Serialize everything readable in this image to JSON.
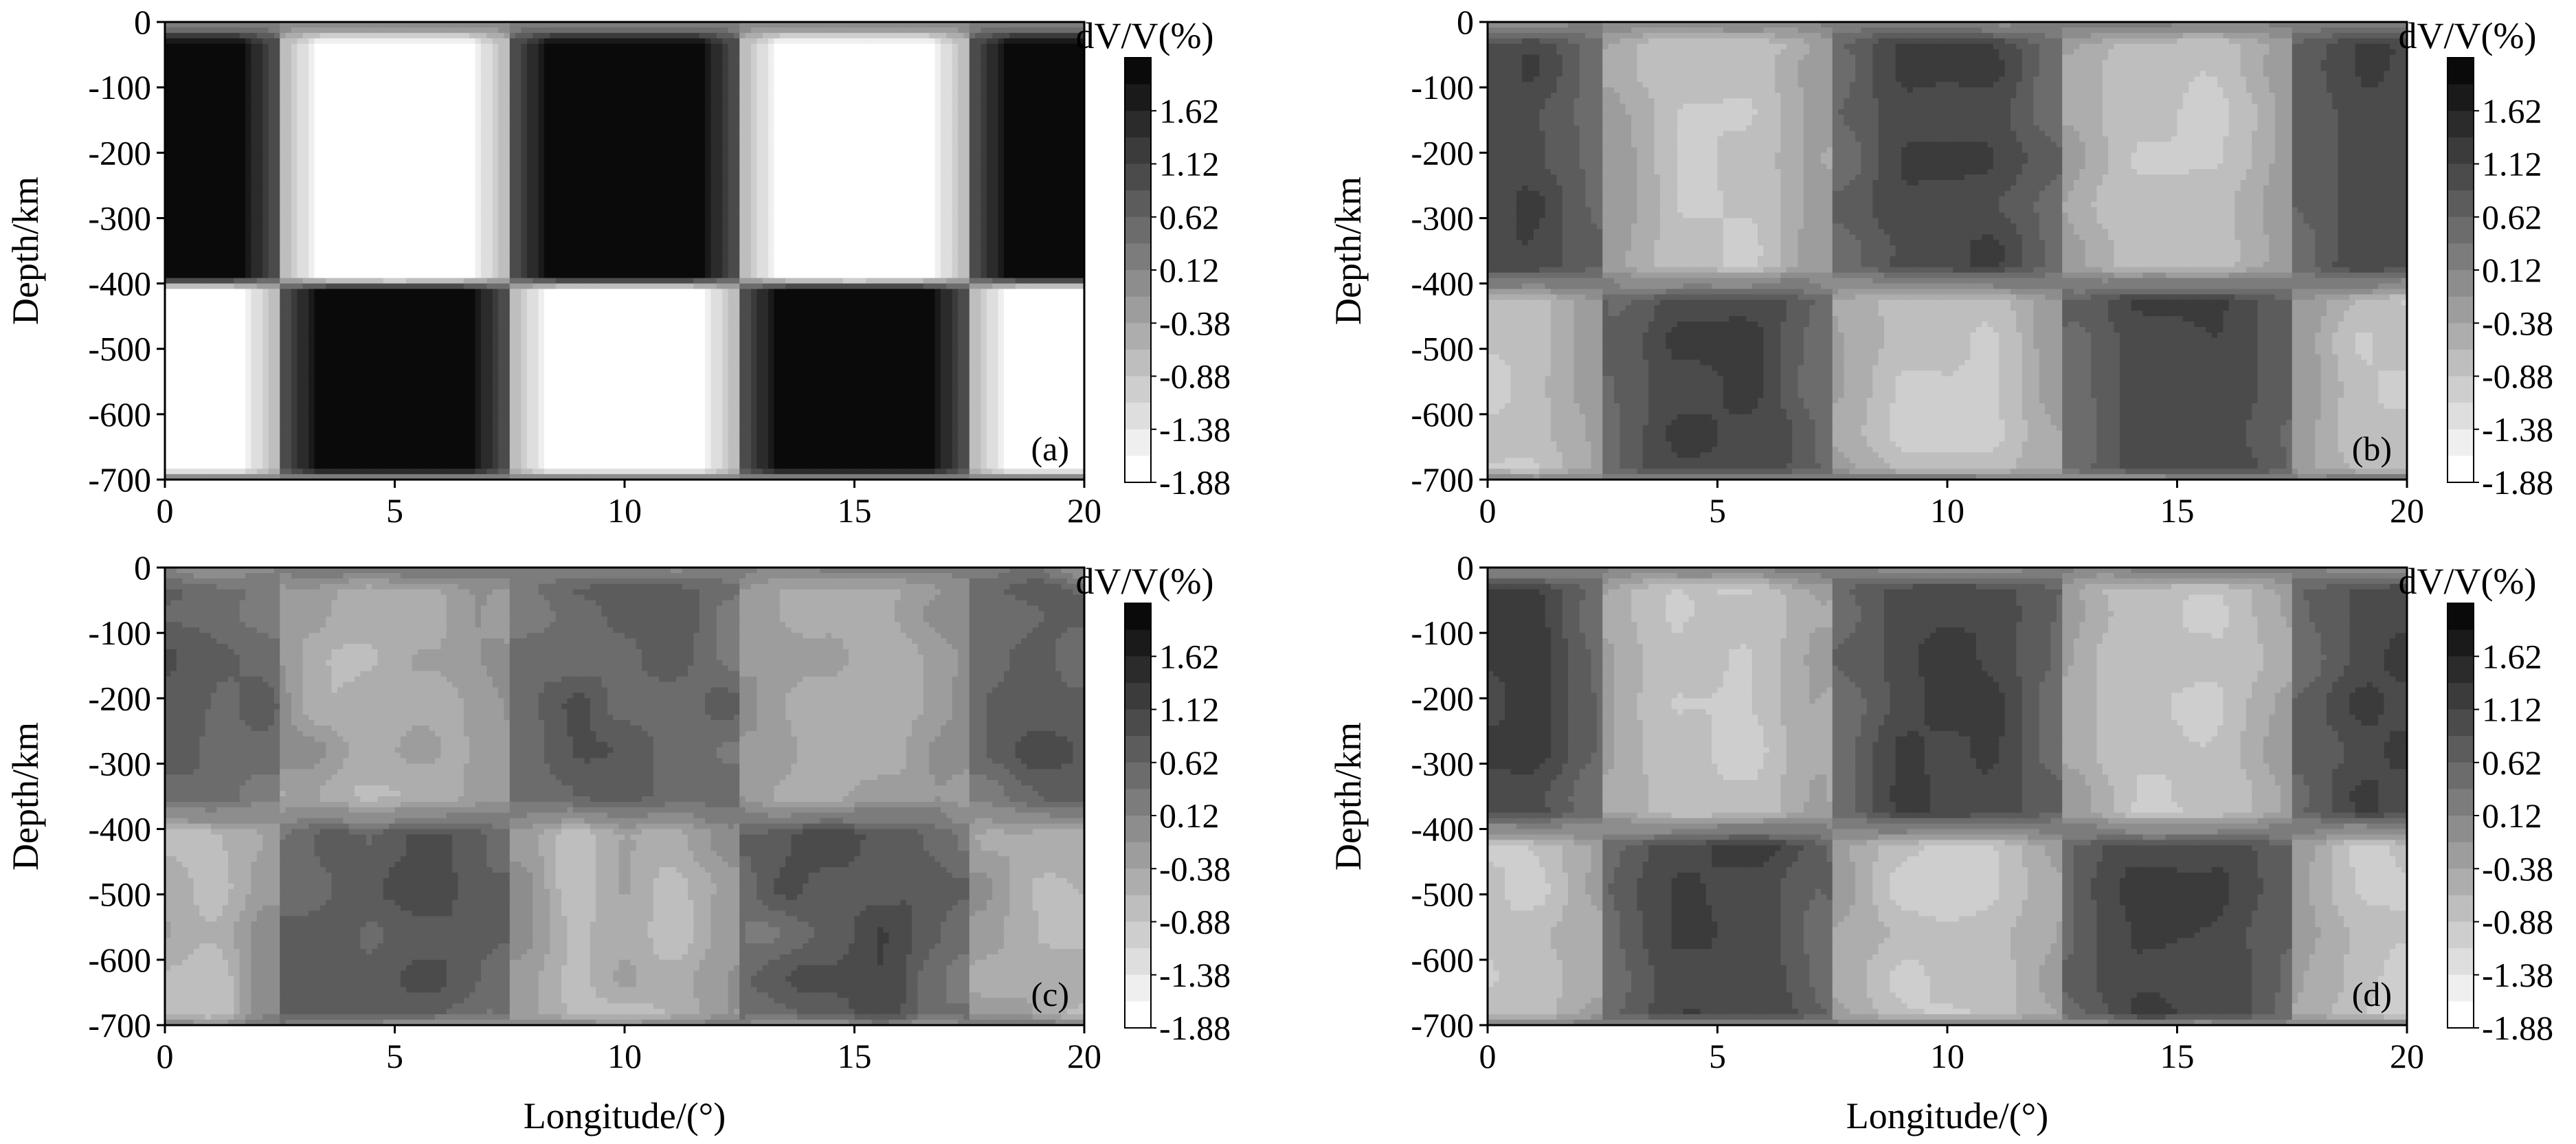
{
  "chart_data": [
    {
      "type": "heatmap",
      "panel_label": "(a)",
      "pattern": "synthetic",
      "xlabel": "",
      "ylabel": "Depth/km",
      "xlim": [
        0,
        20
      ],
      "ylim": [
        -700,
        0
      ],
      "xticks": [
        "0",
        "5",
        "10",
        "15",
        "20"
      ],
      "yticks": [
        "0",
        "-100",
        "-200",
        "-300",
        "-400",
        "-500",
        "-600",
        "-700"
      ],
      "colorbar": {
        "title": "dV/V(%)",
        "levels": [
          "1.62",
          "1.12",
          "0.62",
          "0.12",
          "-0.38",
          "-0.88",
          "-1.38",
          "-1.88"
        ],
        "range": [
          -1.88,
          1.88
        ]
      },
      "upper_layer": {
        "depth_range": [
          0,
          -400
        ],
        "centers_deg": [
          0,
          10,
          20
        ],
        "sign": [
          1,
          -1,
          1,
          -1,
          1
        ],
        "amplitude": 1.9
      },
      "lower_layer": {
        "depth_range": [
          -400,
          -700
        ],
        "sign": [
          -1,
          1,
          -1,
          1,
          -1
        ],
        "amplitude": 1.9
      }
    },
    {
      "type": "heatmap",
      "panel_label": "(b)",
      "pattern": "recovered",
      "xlabel": "",
      "ylabel": "Depth/km",
      "xlim": [
        0,
        20
      ],
      "ylim": [
        -700,
        0
      ],
      "xticks": [
        "0",
        "5",
        "10",
        "15",
        "20"
      ],
      "yticks": [
        "0",
        "-100",
        "-200",
        "-300",
        "-400",
        "-500",
        "-600",
        "-700"
      ],
      "colorbar": {
        "title": "dV/V(%)",
        "levels": [
          "1.62",
          "1.12",
          "0.62",
          "0.12",
          "-0.38",
          "-0.88",
          "-1.38",
          "-1.88"
        ],
        "range": [
          -1.88,
          1.88
        ]
      },
      "upper_layer": {
        "depth_range": [
          0,
          -400
        ],
        "sign": [
          1,
          -1,
          1,
          -1,
          1
        ],
        "amplitude": 0.9
      },
      "lower_layer": {
        "depth_range": [
          -400,
          -700
        ],
        "sign": [
          -1,
          1,
          -1,
          1,
          -1
        ],
        "amplitude": 0.9
      }
    },
    {
      "type": "heatmap",
      "panel_label": "(c)",
      "pattern": "recovered-noisy",
      "xlabel": "Longitude/(°)",
      "ylabel": "Depth/km",
      "xlim": [
        0,
        20
      ],
      "ylim": [
        -700,
        0
      ],
      "xticks": [
        "0",
        "5",
        "10",
        "15",
        "20"
      ],
      "yticks": [
        "0",
        "-100",
        "-200",
        "-300",
        "-400",
        "-500",
        "-600",
        "-700"
      ],
      "colorbar": {
        "title": "dV/V(%)",
        "levels": [
          "1.62",
          "1.12",
          "0.62",
          "0.12",
          "-0.38",
          "-0.88",
          "-1.38",
          "-1.88"
        ],
        "range": [
          -1.88,
          1.88
        ]
      },
      "upper_layer": {
        "depth_range": [
          0,
          -380
        ],
        "sign": [
          1,
          -1,
          1,
          -1,
          1
        ],
        "amplitude": 0.6
      },
      "lower_layer": {
        "depth_range": [
          -380,
          -700
        ],
        "sign": [
          -1,
          1,
          -1,
          1,
          -1
        ],
        "amplitude": 0.7
      }
    },
    {
      "type": "heatmap",
      "panel_label": "(d)",
      "pattern": "recovered",
      "xlabel": "Longitude/(°)",
      "ylabel": "Depth/km",
      "xlim": [
        0,
        20
      ],
      "ylim": [
        -700,
        0
      ],
      "xticks": [
        "0",
        "5",
        "10",
        "15",
        "20"
      ],
      "yticks": [
        "0",
        "-100",
        "-200",
        "-300",
        "-400",
        "-500",
        "-600",
        "-700"
      ],
      "colorbar": {
        "title": "dV/V(%)",
        "levels": [
          "1.62",
          "1.12",
          "0.62",
          "0.12",
          "-0.38",
          "-0.88",
          "-1.38",
          "-1.88"
        ],
        "range": [
          -1.88,
          1.88
        ]
      },
      "upper_layer": {
        "depth_range": [
          0,
          -400
        ],
        "sign": [
          1,
          -1,
          1,
          -1,
          1
        ],
        "amplitude": 0.95
      },
      "lower_layer": {
        "depth_range": [
          -400,
          -700
        ],
        "sign": [
          -1,
          1,
          -1,
          1,
          -1
        ],
        "amplitude": 0.95
      }
    }
  ],
  "colors": {
    "max_fill": "#0a0a0a",
    "min_fill": "#ffffff"
  }
}
